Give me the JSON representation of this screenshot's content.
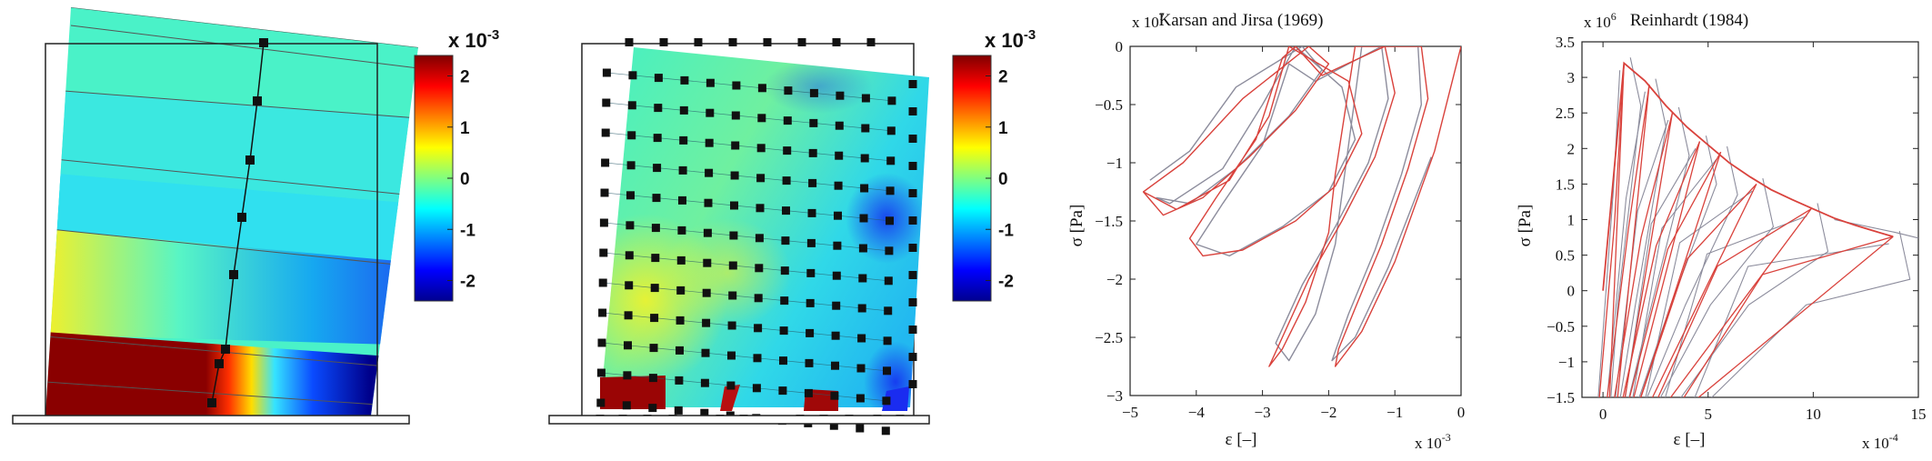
{
  "chart_data": [
    {
      "type": "heatmap",
      "panel": "strain-field-left",
      "colorbar": {
        "exponent_label": "x 10",
        "exponent": "-3",
        "ticks": [
          "2",
          "1",
          "0",
          "-1",
          "-2"
        ],
        "values": [
          2,
          1,
          0,
          -1,
          -2
        ],
        "range": [
          -2.4,
          2.4
        ]
      }
    },
    {
      "type": "heatmap",
      "panel": "strain-field-right",
      "colorbar": {
        "exponent_label": "x 10",
        "exponent": "-3",
        "ticks": [
          "2",
          "1",
          "0",
          "-1",
          "-2"
        ],
        "values": [
          2,
          1,
          0,
          -1,
          -2
        ],
        "range": [
          -2.4,
          2.4
        ]
      }
    },
    {
      "type": "line",
      "title": "Karsan and Jirsa (1969)",
      "xlabel": "ε [–]",
      "ylabel": "σ [Pa]",
      "x_exponent": "x 10",
      "x_exponent_power": "-3",
      "y_exponent": "x 10",
      "y_exponent_power": "7",
      "xlim": [
        -5,
        0
      ],
      "ylim": [
        -3,
        0
      ],
      "xticks": [
        -5,
        -4,
        -3,
        -2,
        -1,
        0
      ],
      "yticks": [
        0,
        -0.5,
        -1,
        -1.5,
        -2,
        -2.5,
        -3
      ],
      "xtick_labels": [
        "−5",
        "−4",
        "−3",
        "−2",
        "−1",
        "0"
      ],
      "ytick_labels": [
        "0",
        "−0.5",
        "−1",
        "−1.5",
        "−2",
        "−2.5",
        "−3"
      ],
      "series": [
        {
          "color": "#d9423c",
          "x": [
            -4.8,
            -4.2,
            -3.3,
            -2.3,
            -2.0,
            -2.5,
            -3.2,
            -3.9,
            -4.5,
            -4.8,
            -4.3,
            -3.5,
            -2.9,
            -2.6,
            -1.7,
            -1.5,
            -1.9,
            -2.5,
            -3.3,
            -3.9,
            -4.1,
            -3.7,
            -3.1,
            -2.7,
            -2.5,
            -2.1,
            -1.15,
            -1.0,
            -1.3,
            -1.8,
            -2.3,
            -2.7,
            -2.9,
            -2.7,
            -2.35,
            -2.0,
            -1.9,
            -1.6,
            -0.6,
            -0.5,
            -0.8,
            -1.2,
            -1.6,
            -1.85,
            -1.9,
            -1.5,
            -1.0,
            -0.4,
            0.0
          ],
          "y": [
            -1.25,
            -1.0,
            -0.45,
            0.0,
            -0.15,
            -0.55,
            -0.95,
            -1.3,
            -1.45,
            -1.25,
            -1.4,
            -1.15,
            -0.6,
            0.0,
            -0.3,
            -0.75,
            -1.2,
            -1.5,
            -1.75,
            -1.8,
            -1.65,
            -1.3,
            -0.8,
            -0.1,
            0.0,
            -0.25,
            0.0,
            -0.4,
            -0.95,
            -1.5,
            -2.0,
            -2.5,
            -2.75,
            -2.6,
            -2.2,
            -1.6,
            -1.1,
            0.0,
            0.0,
            -0.45,
            -1.05,
            -1.7,
            -2.25,
            -2.6,
            -2.75,
            -2.45,
            -1.85,
            -0.9,
            0.0
          ]
        },
        {
          "color": "#8c8c9c",
          "x": [
            -4.7,
            -4.1,
            -3.4,
            -2.4,
            -2.1,
            -2.6,
            -3.4,
            -4.1,
            -4.6,
            -4.4,
            -3.6,
            -3.0,
            -2.5,
            -1.8,
            -1.6,
            -2.0,
            -2.7,
            -3.5,
            -4.0,
            -3.6,
            -3.0,
            -2.6,
            -2.2,
            -1.2,
            -1.1,
            -1.4,
            -1.9,
            -2.4,
            -2.8,
            -2.6,
            -2.2,
            -1.9,
            -1.5,
            -0.65,
            -0.6,
            -0.9,
            -1.3,
            -1.7,
            -1.95,
            -1.6,
            -1.1,
            -0.45
          ],
          "y": [
            -1.15,
            -0.9,
            -0.35,
            0.0,
            -0.2,
            -0.6,
            -1.05,
            -1.35,
            -1.3,
            -1.35,
            -1.05,
            -0.5,
            0.0,
            -0.35,
            -0.8,
            -1.25,
            -1.55,
            -1.8,
            -1.7,
            -1.35,
            -0.85,
            -0.15,
            -0.3,
            0.0,
            -0.45,
            -1.0,
            -1.55,
            -2.05,
            -2.55,
            -2.7,
            -2.3,
            -1.7,
            0.0,
            0.0,
            -0.5,
            -1.1,
            -1.75,
            -2.3,
            -2.7,
            -2.5,
            -1.9,
            -0.95
          ]
        }
      ]
    },
    {
      "type": "line",
      "title": "Reinhardt (1984)",
      "xlabel": "ε [–]",
      "ylabel": "σ [Pa]",
      "x_exponent": "x 10",
      "x_exponent_power": "-4",
      "y_exponent": "x 10",
      "y_exponent_power": "6",
      "xlim": [
        -1,
        15
      ],
      "ylim": [
        -1.5,
        3.5
      ],
      "xticks": [
        0,
        5,
        10,
        15
      ],
      "yticks": [
        3.5,
        3,
        2.5,
        2,
        1.5,
        1,
        0.5,
        0,
        -0.5,
        -1,
        -1.5
      ],
      "xtick_labels": [
        "0",
        "5",
        "10",
        "15"
      ],
      "ytick_labels": [
        "3.5",
        "3",
        "2.5",
        "2",
        "1.5",
        "1",
        "0.5",
        "0",
        "−0.5",
        "−1",
        "−1.5"
      ],
      "envelope": {
        "color": "#d9423c",
        "x": [
          0.0,
          1.0,
          2.0,
          3.0,
          4.0,
          5.0,
          6.0,
          7.0,
          8.0,
          9.0,
          10.0,
          11.0,
          12.0,
          13.0,
          13.8
        ],
        "y": [
          0.0,
          3.2,
          2.95,
          2.6,
          2.3,
          2.05,
          1.8,
          1.6,
          1.42,
          1.28,
          1.15,
          1.02,
          0.92,
          0.83,
          0.76
        ]
      },
      "unloading_peaks": [
        {
          "x": 1.0,
          "y": 3.2
        },
        {
          "x": 2.2,
          "y": 2.9
        },
        {
          "x": 3.3,
          "y": 2.5
        },
        {
          "x": 4.6,
          "y": 2.1
        },
        {
          "x": 5.6,
          "y": 1.95
        },
        {
          "x": 7.3,
          "y": 1.5
        },
        {
          "x": 9.9,
          "y": 1.15
        },
        {
          "x": 13.8,
          "y": 0.76
        }
      ],
      "gray_series_color": "#8c8c9c"
    }
  ]
}
